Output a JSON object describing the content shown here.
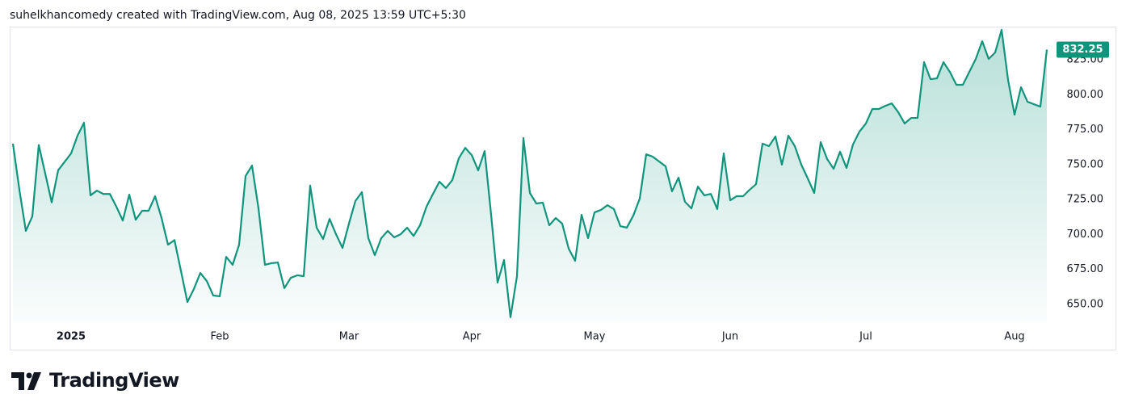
{
  "header": "suhelkhancomedy created with TradingView.com, Aug 08, 2025 13:59 UTC+5:30",
  "brand": "TradingView",
  "chart_data": {
    "type": "area",
    "categories": [
      null,
      null,
      null,
      null,
      null,
      null,
      null,
      null,
      null,
      "2025",
      null,
      null,
      null,
      null,
      null,
      null,
      null,
      null,
      null,
      null,
      null,
      null,
      null,
      null,
      null,
      null,
      null,
      null,
      null,
      null,
      null,
      null,
      "Feb",
      null,
      null,
      null,
      null,
      null,
      null,
      null,
      null,
      null,
      null,
      null,
      null,
      null,
      null,
      null,
      null,
      null,
      null,
      null,
      "Mar",
      null,
      null,
      null,
      null,
      null,
      null,
      null,
      null,
      null,
      null,
      null,
      null,
      null,
      null,
      null,
      null,
      null,
      null,
      "Apr",
      null,
      null,
      null,
      null,
      null,
      null,
      null,
      null,
      null,
      null,
      null,
      null,
      null,
      null,
      null,
      null,
      null,
      null,
      "May",
      null,
      null,
      null,
      null,
      null,
      null,
      null,
      null,
      null,
      null,
      null,
      null,
      null,
      null,
      null,
      null,
      null,
      null,
      null,
      null,
      "Jun",
      null,
      null,
      null,
      null,
      null,
      null,
      null,
      null,
      null,
      null,
      null,
      null,
      null,
      null,
      null,
      null,
      null,
      null,
      null,
      null,
      "Jul",
      null,
      null,
      null,
      null,
      null,
      null,
      null,
      null,
      null,
      null,
      null,
      null,
      null,
      null,
      null,
      null,
      null,
      null,
      null,
      null,
      null,
      null,
      "Aug",
      null,
      null,
      null,
      null,
      null
    ],
    "series": [
      {
        "color": "#10957d",
        "values": [
          765,
          732,
          702.6,
          713,
          764,
          743.6,
          723,
          746,
          752,
          758,
          770.7,
          780,
          728,
          731.4,
          729,
          729,
          720,
          710,
          728.5,
          710.6,
          717,
          717,
          727.4,
          711.8,
          692.7,
          696,
          674,
          651.7,
          661,
          672.5,
          666.7,
          656.4,
          655.8,
          684,
          678.3,
          692.7,
          741.8,
          749.3,
          718.7,
          678.3,
          679.5,
          680,
          661.6,
          669,
          670.8,
          670.2,
          735,
          704.9,
          696.8,
          711.2,
          700.2,
          690.4,
          707.8,
          724,
          730.3,
          697.4,
          685.2,
          697.4,
          702.6,
          698,
          700.2,
          704.9,
          699,
          706.6,
          719.9,
          729,
          737.8,
          733.2,
          739,
          754.5,
          762,
          756.8,
          745.9,
          759.7,
          714.1,
          665.6,
          681.8,
          640.8,
          670.2,
          769,
          729.7,
          722.2,
          722.8,
          706.6,
          711.8,
          707.8,
          689.9,
          681.2,
          714.1,
          697.4,
          715.8,
          717.6,
          721,
          718.2,
          706,
          704.9,
          713.5,
          725.7,
          757.4,
          755.7,
          752.2,
          748.8,
          730.9,
          740.7,
          723.4,
          718.7,
          734.3,
          728,
          729,
          718.2,
          758,
          724.5,
          727.4,
          727.4,
          732,
          736,
          765,
          763.2,
          770.1,
          750,
          770.7,
          763.2,
          750,
          740.1,
          729.7,
          766.1,
          754,
          747,
          759.2,
          747.6,
          764.4,
          773.6,
          779.4,
          789.8,
          789.8,
          792,
          793.8,
          787.5,
          779.4,
          783.4,
          783.4,
          823.3,
          811.1,
          811.7,
          823.3,
          816.3,
          807.1,
          807.1,
          816.3,
          825.6,
          838.3,
          825.6,
          830.2,
          846.4,
          810.6,
          785.7,
          805.4,
          795,
          793.2,
          791.5,
          832.25
        ]
      }
    ],
    "ylim": [
      636.7,
      848.7
    ],
    "yticks": [
      {
        "value": 650,
        "label": "650.00"
      },
      {
        "value": 675,
        "label": "675.00"
      },
      {
        "value": 700,
        "label": "700.00"
      },
      {
        "value": 725,
        "label": "725.00"
      },
      {
        "value": 750,
        "label": "750.00"
      },
      {
        "value": 775,
        "label": "775.00"
      },
      {
        "value": 800,
        "label": "800.00"
      },
      {
        "value": 825,
        "label": "825.00"
      }
    ]
  }
}
